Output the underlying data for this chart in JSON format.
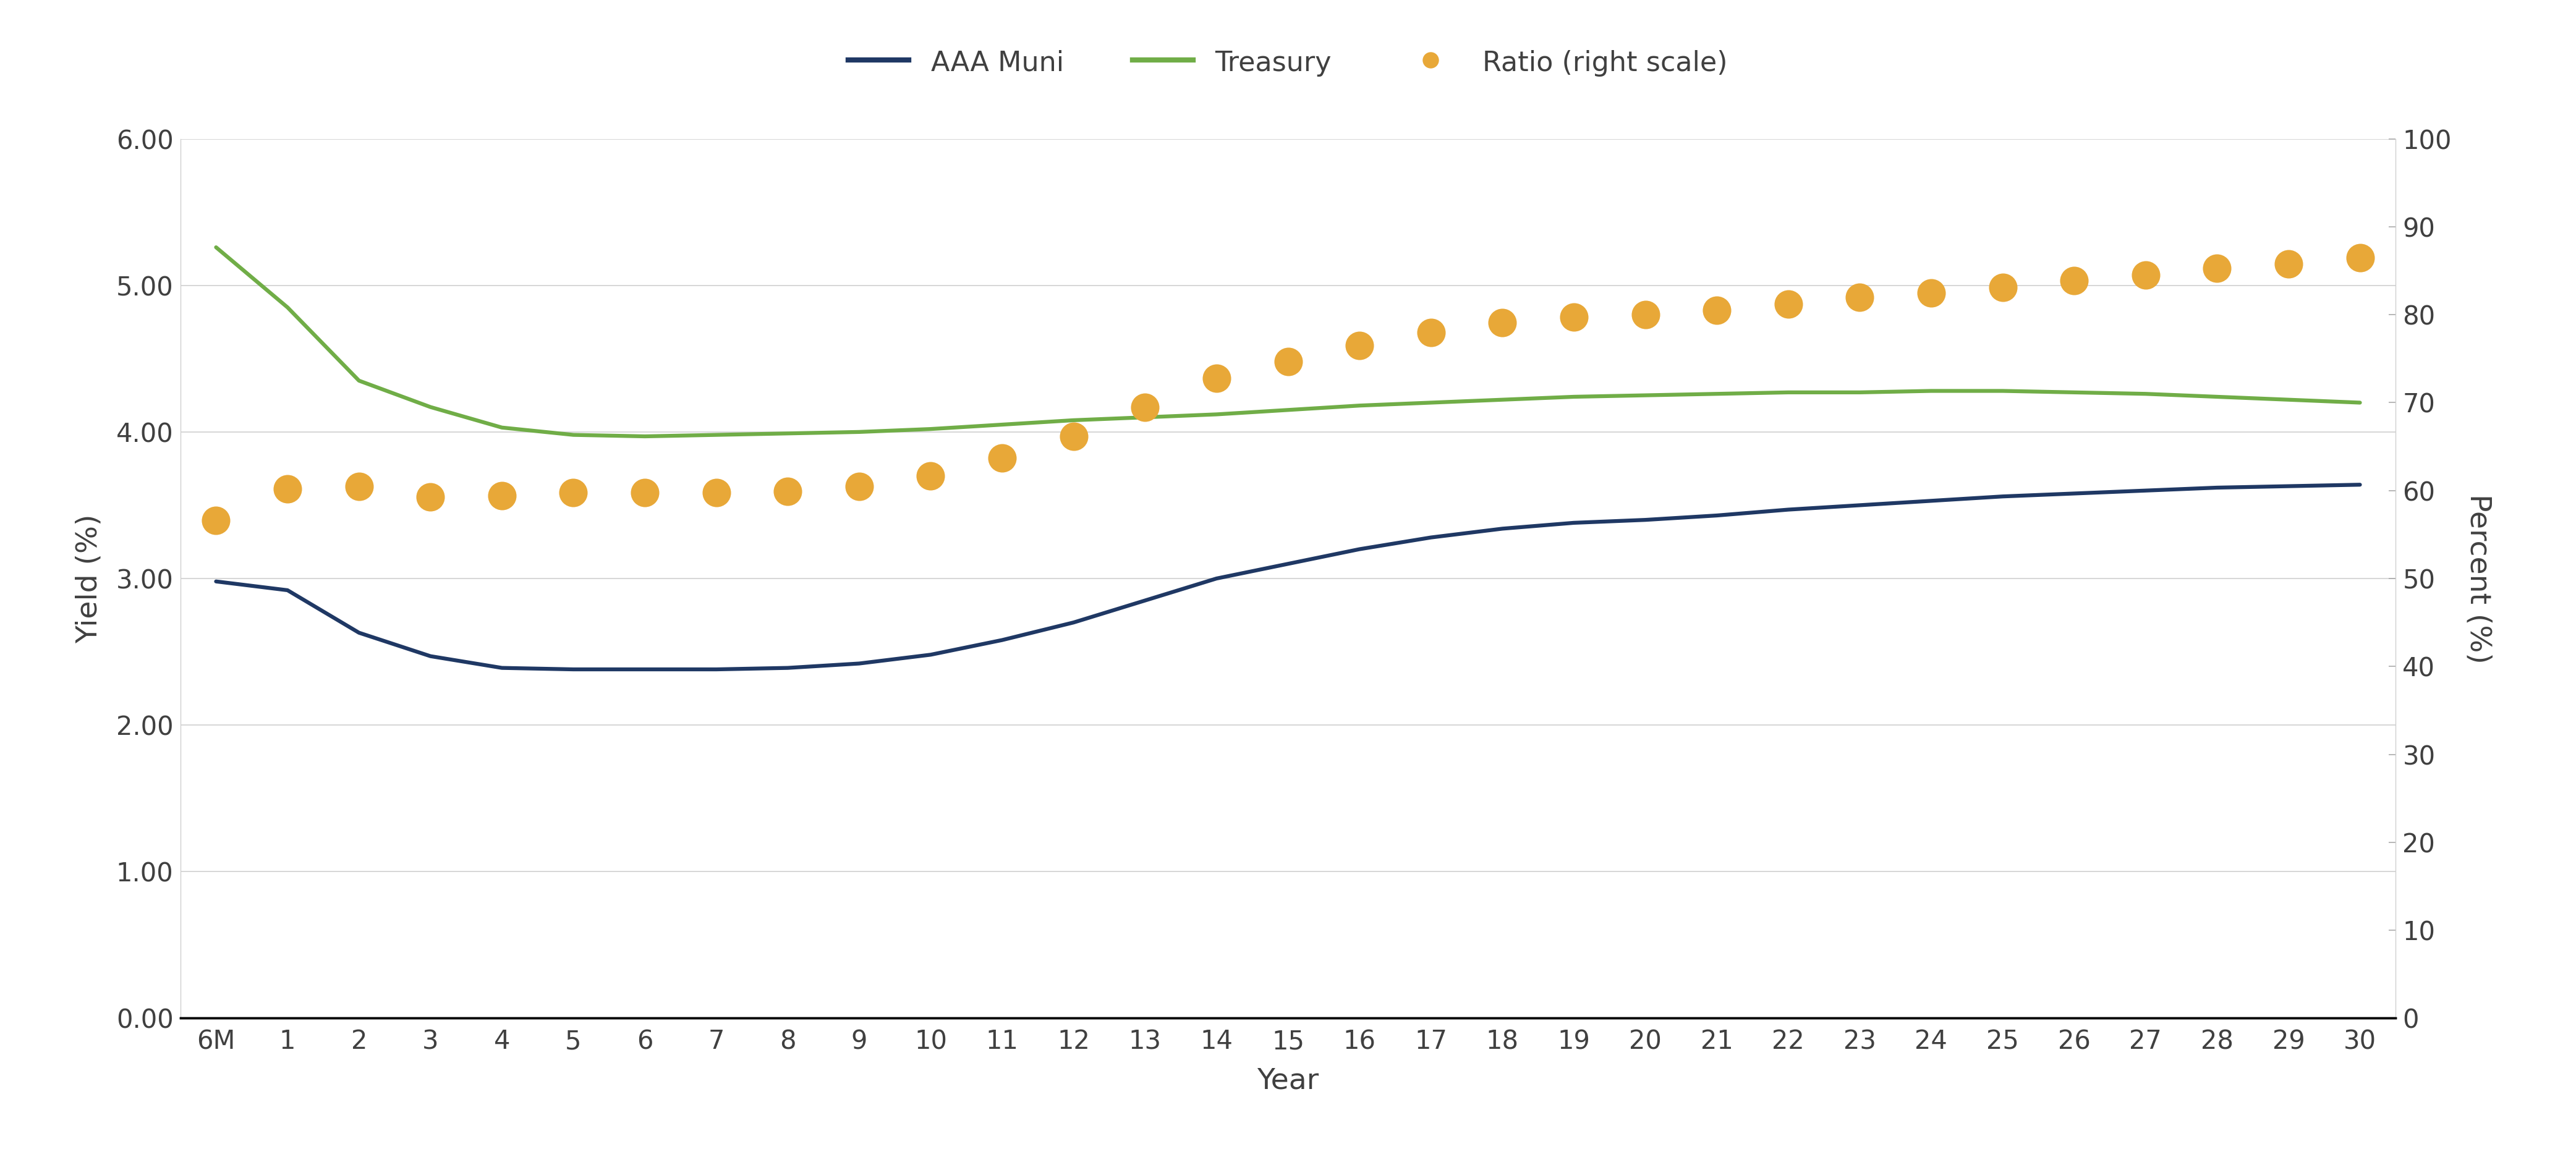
{
  "x_labels": [
    "6M",
    "1",
    "2",
    "3",
    "4",
    "5",
    "6",
    "7",
    "8",
    "9",
    "10",
    "11",
    "12",
    "13",
    "14",
    "15",
    "16",
    "17",
    "18",
    "19",
    "20",
    "21",
    "22",
    "23",
    "24",
    "25",
    "26",
    "27",
    "28",
    "29",
    "30"
  ],
  "x_positions": [
    0,
    1,
    2,
    3,
    4,
    5,
    6,
    7,
    8,
    9,
    10,
    11,
    12,
    13,
    14,
    15,
    16,
    17,
    18,
    19,
    20,
    21,
    22,
    23,
    24,
    25,
    26,
    27,
    28,
    29,
    30
  ],
  "aaa_muni": [
    2.98,
    2.92,
    2.63,
    2.47,
    2.39,
    2.38,
    2.38,
    2.38,
    2.39,
    2.42,
    2.48,
    2.58,
    2.7,
    2.85,
    3.0,
    3.1,
    3.2,
    3.28,
    3.34,
    3.38,
    3.4,
    3.43,
    3.47,
    3.5,
    3.53,
    3.56,
    3.58,
    3.6,
    3.62,
    3.63,
    3.64
  ],
  "treasury": [
    5.26,
    4.85,
    4.35,
    4.17,
    4.03,
    3.98,
    3.97,
    3.98,
    3.99,
    4.0,
    4.02,
    4.05,
    4.08,
    4.1,
    4.12,
    4.15,
    4.18,
    4.2,
    4.22,
    4.24,
    4.25,
    4.26,
    4.27,
    4.27,
    4.28,
    4.28,
    4.27,
    4.26,
    4.24,
    4.22,
    4.2
  ],
  "ratio": [
    56.6,
    60.2,
    60.5,
    59.3,
    59.4,
    59.8,
    59.8,
    59.8,
    59.9,
    60.5,
    61.7,
    63.7,
    66.2,
    69.5,
    72.8,
    74.7,
    76.5,
    78.0,
    79.1,
    79.7,
    80.0,
    80.5,
    81.2,
    82.0,
    82.5,
    83.1,
    83.9,
    84.5,
    85.3,
    85.8,
    86.5
  ],
  "aaa_muni_color": "#1f3864",
  "treasury_color": "#70ad47",
  "ratio_color": "#e8a838",
  "ylabel_left": "Yield (%)",
  "ylabel_right": "Percent (%)",
  "xlabel": "Year",
  "ylim_left": [
    0.0,
    6.0
  ],
  "ylim_right": [
    0,
    100
  ],
  "yticks_left": [
    0.0,
    1.0,
    2.0,
    3.0,
    4.0,
    5.0,
    6.0
  ],
  "ytick_labels_left": [
    "0.00",
    "1.00",
    "2.00",
    "3.00",
    "4.00",
    "5.00",
    "6.00"
  ],
  "yticks_right": [
    0,
    10,
    20,
    30,
    40,
    50,
    60,
    70,
    80,
    90,
    100
  ],
  "legend_labels": [
    "AAA Muni",
    "Treasury",
    "Ratio (right scale)"
  ],
  "background_color": "#ffffff",
  "grid_color": "#d0d0d0",
  "font_color": "#404040"
}
